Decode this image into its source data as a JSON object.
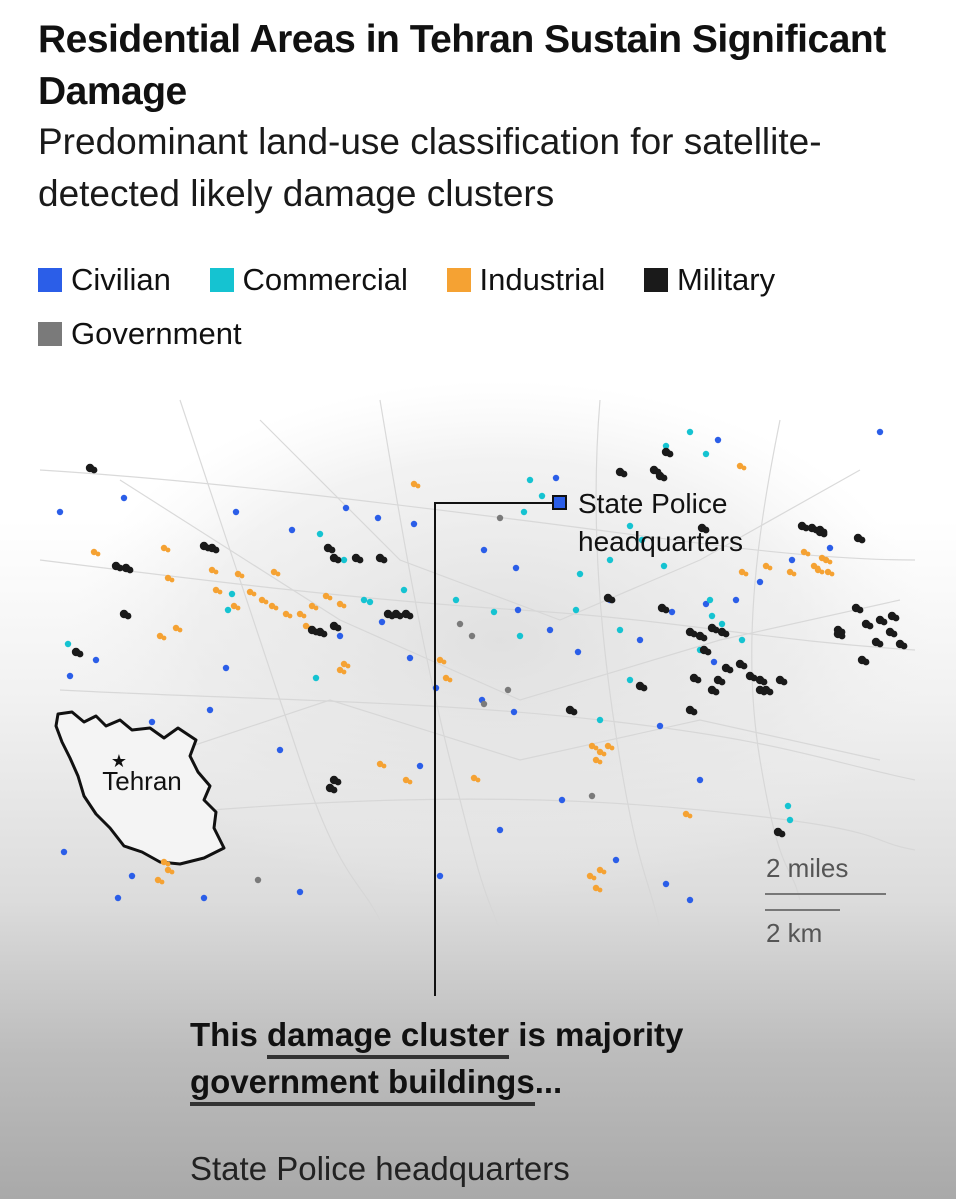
{
  "title": "Residential Areas in Tehran Sustain Significant Damage",
  "subtitle": "Predominant land-use classification for satellite-detected likely damage clusters",
  "legend": [
    {
      "label": "Civilian",
      "color": "#2b5ee8"
    },
    {
      "label": "Commercial",
      "color": "#15c3d1"
    },
    {
      "label": "Industrial",
      "color": "#f5a233"
    },
    {
      "label": "Military",
      "color": "#1a1a1a"
    },
    {
      "label": "Government",
      "color": "#7a7a7a"
    }
  ],
  "map": {
    "callout_label": "State Police headquarters",
    "inset_label": "Tehran",
    "scale_miles": "2 miles",
    "scale_km": "2 km"
  },
  "callout": {
    "highlight1": "damage cluster",
    "text1_pre": "This ",
    "text1_post": " is majority",
    "highlight2": "government buildings",
    "text2_post": "..."
  },
  "caption": "State Police headquarters"
}
